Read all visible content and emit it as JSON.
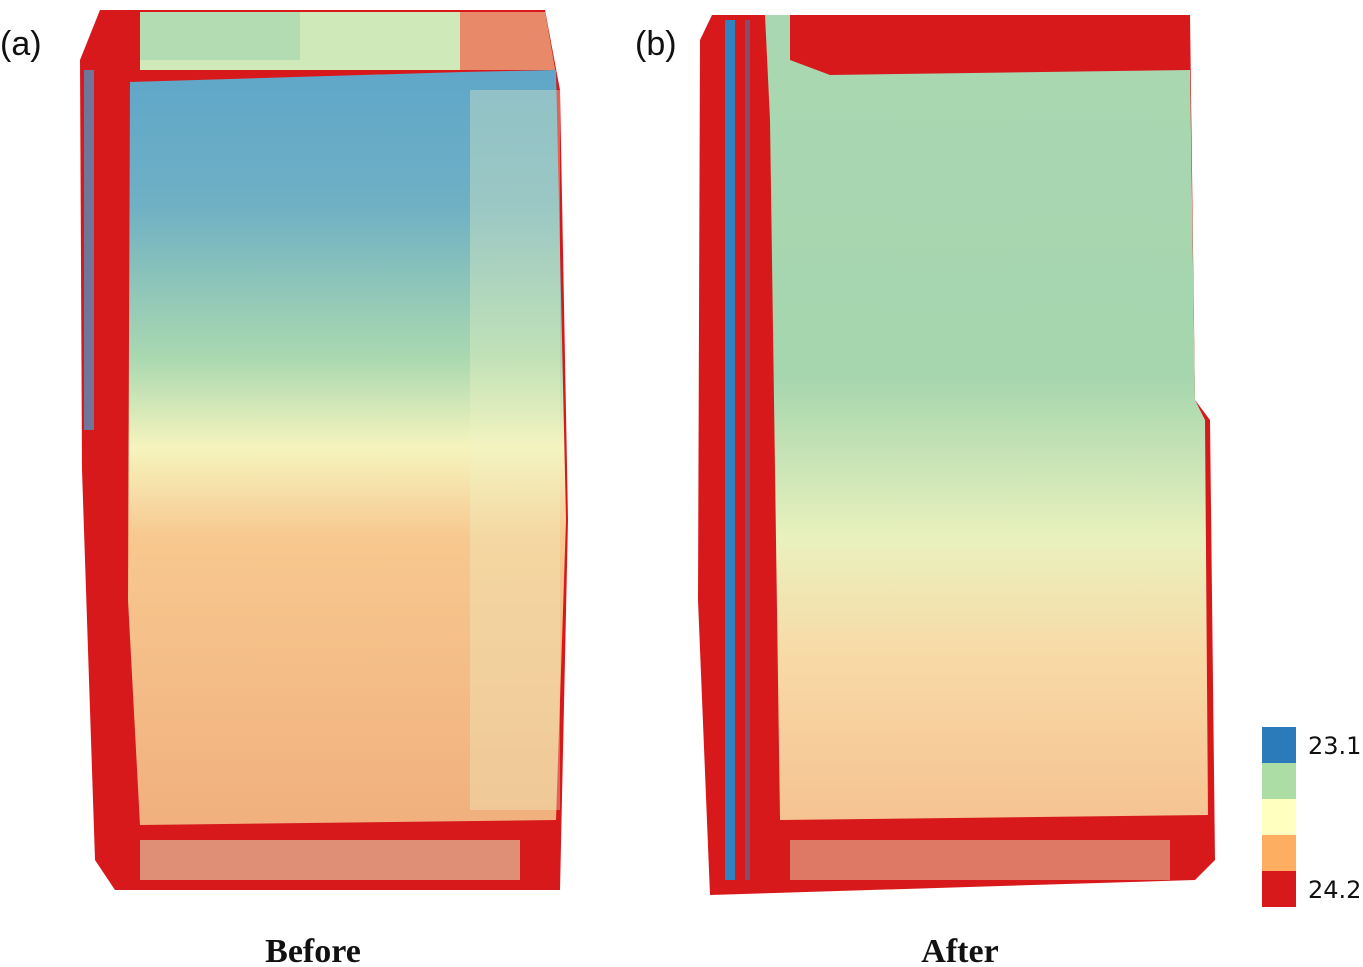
{
  "panels": [
    {
      "label": "(a)",
      "caption": "Before"
    },
    {
      "label": "(b)",
      "caption": "After"
    }
  ],
  "legend": {
    "colors": [
      "#2b7bba",
      "#abdda4",
      "#ffffbf",
      "#fdae61",
      "#d7191c"
    ],
    "labels": [
      "23.1",
      "24.2"
    ]
  }
}
